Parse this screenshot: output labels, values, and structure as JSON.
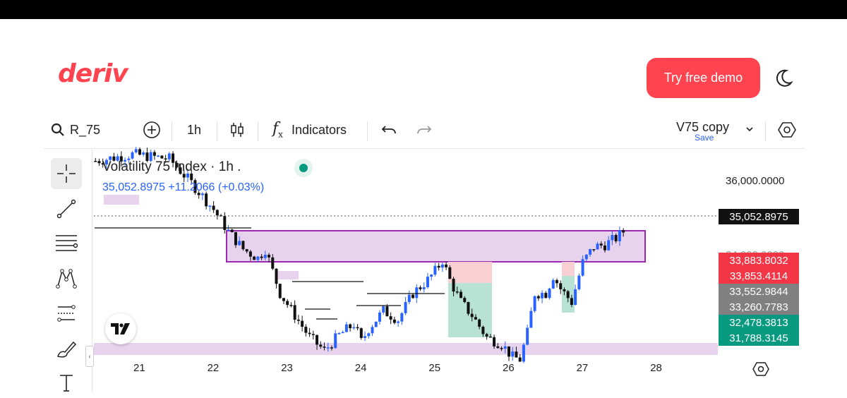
{
  "header": {
    "logo": "deriv",
    "demo_button": "Try free demo",
    "theme_icon": "moon-icon"
  },
  "toolbar": {
    "symbol": "R_75",
    "interval": "1h",
    "indicators_label": "Indicators",
    "template_name": "V75 copy",
    "save_label": "Save"
  },
  "legend": {
    "title": "Volatility 75 Index · 1h .",
    "price_line": "35,052.8975  +11.2066 (+0.03%)"
  },
  "price_axis": {
    "level_label": "36,000.0000",
    "current": "35,052.8975",
    "partial_label": "34,000.0000",
    "tags": [
      {
        "value": "33,883.8032",
        "color": "#f23645"
      },
      {
        "value": "33,853.4114",
        "color": "#f23645"
      },
      {
        "value": "33,552.9844",
        "color": "#808080"
      },
      {
        "value": "33,260.7783",
        "color": "#808080"
      },
      {
        "value": "32,478.3813",
        "color": "#089981"
      },
      {
        "value": "31,788.3145",
        "color": "#089981"
      }
    ]
  },
  "time_axis": {
    "labels": [
      "21",
      "22",
      "23",
      "24",
      "25",
      "26",
      "27",
      "28"
    ]
  },
  "chart_data": {
    "type": "candlestick",
    "symbol": "Volatility 75 Index",
    "interval": "1h",
    "x_labels": [
      "21",
      "22",
      "23",
      "24",
      "25",
      "26",
      "27",
      "28"
    ],
    "last_price": 35052.8975,
    "change": 11.2066,
    "change_pct": 0.03,
    "price_levels": [
      33883.8032,
      33853.4114,
      33552.9844,
      33260.7783,
      32478.3813,
      31788.3145
    ],
    "path_points": [
      {
        "day": 20.4,
        "price": 36300
      },
      {
        "day": 20.9,
        "price": 36450
      },
      {
        "day": 21.4,
        "price": 36350
      },
      {
        "day": 21.7,
        "price": 35800
      },
      {
        "day": 22.0,
        "price": 35200
      },
      {
        "day": 22.2,
        "price": 34700
      },
      {
        "day": 22.4,
        "price": 34300
      },
      {
        "day": 22.6,
        "price": 34100
      },
      {
        "day": 22.7,
        "price": 34300
      },
      {
        "day": 22.9,
        "price": 33300
      },
      {
        "day": 23.1,
        "price": 32800
      },
      {
        "day": 23.3,
        "price": 32300
      },
      {
        "day": 23.5,
        "price": 32000
      },
      {
        "day": 23.7,
        "price": 32350
      },
      {
        "day": 23.9,
        "price": 32600
      },
      {
        "day": 24.0,
        "price": 32200
      },
      {
        "day": 24.1,
        "price": 32500
      },
      {
        "day": 24.3,
        "price": 32900
      },
      {
        "day": 24.5,
        "price": 32700
      },
      {
        "day": 24.7,
        "price": 33300
      },
      {
        "day": 24.9,
        "price": 33600
      },
      {
        "day": 25.0,
        "price": 33800
      },
      {
        "day": 25.1,
        "price": 34050
      },
      {
        "day": 25.2,
        "price": 33600
      },
      {
        "day": 25.35,
        "price": 33100
      },
      {
        "day": 25.5,
        "price": 32800
      },
      {
        "day": 25.7,
        "price": 32300
      },
      {
        "day": 25.9,
        "price": 32150
      },
      {
        "day": 26.05,
        "price": 31850
      },
      {
        "day": 26.15,
        "price": 31800
      },
      {
        "day": 26.25,
        "price": 32400
      },
      {
        "day": 26.35,
        "price": 33300
      },
      {
        "day": 26.5,
        "price": 33300
      },
      {
        "day": 26.6,
        "price": 33700
      },
      {
        "day": 26.7,
        "price": 33400
      },
      {
        "day": 26.85,
        "price": 33100
      },
      {
        "day": 27.0,
        "price": 34000
      },
      {
        "day": 27.15,
        "price": 34350
      },
      {
        "day": 27.3,
        "price": 34400
      },
      {
        "day": 27.45,
        "price": 34550
      },
      {
        "day": 27.55,
        "price": 34700
      },
      {
        "day": 27.6,
        "price": 35052
      }
    ]
  },
  "drawing_tools": [
    "crosshair-icon",
    "trend-line-icon",
    "fib-retracement-icon",
    "pattern-icon",
    "prediction-icon",
    "brush-icon",
    "text-icon"
  ]
}
